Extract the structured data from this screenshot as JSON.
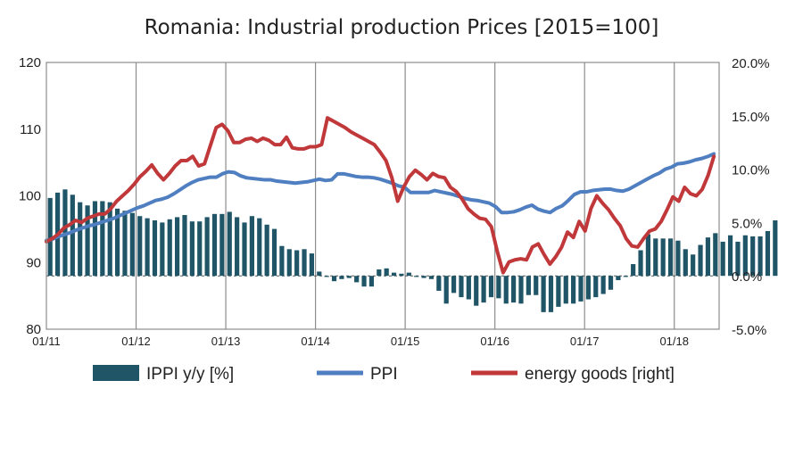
{
  "chart_data": {
    "type": "bar",
    "title": "Romania: Industrial production Prices [2015=100]",
    "left_axis": {
      "ylim": [
        80,
        120
      ],
      "ticks": [
        "80",
        "90",
        "100",
        "110",
        "120"
      ]
    },
    "right_axis": {
      "ylim": [
        -5.0,
        20.0
      ],
      "ticks": [
        "-5.0%",
        "0.0%",
        "5.0%",
        "10.0%",
        "15.0%",
        "20.0%"
      ]
    },
    "x_ticks": [
      "01/11",
      "01/12",
      "01/13",
      "01/14",
      "01/15",
      "01/16",
      "01/17",
      "01/18"
    ],
    "grid": "vertical",
    "legend": {
      "placement": "bottom",
      "items": [
        "IPPI y/y [%]",
        "PPI",
        "energy goods [right]"
      ]
    },
    "colors": {
      "bars": "#1f5566",
      "ppi": "#4f7fc0",
      "energy": "#c0383a"
    },
    "series": [
      {
        "name": "IPPI y/y [%]",
        "axis": "right",
        "type": "bar",
        "values": [
          7.3,
          7.8,
          8.1,
          7.6,
          6.9,
          6.6,
          7.0,
          7.0,
          6.9,
          6.3,
          6.1,
          5.9,
          5.6,
          5.4,
          5.2,
          5.0,
          5.3,
          5.5,
          5.7,
          5.1,
          5.1,
          5.5,
          5.8,
          5.8,
          6.0,
          5.5,
          5.0,
          5.6,
          5.4,
          4.8,
          4.4,
          2.8,
          2.5,
          2.4,
          2.5,
          2.1,
          0.4,
          -0.1,
          -0.5,
          -0.3,
          -0.2,
          -0.6,
          -1.0,
          -1.0,
          0.6,
          0.7,
          0.3,
          0.2,
          0.3,
          -0.1,
          -0.2,
          -0.3,
          -1.4,
          -2.6,
          -1.6,
          -2.0,
          -2.2,
          -2.8,
          -2.5,
          -2.0,
          -2.1,
          -2.6,
          -2.5,
          -2.6,
          -1.8,
          -1.8,
          -3.4,
          -3.4,
          -2.9,
          -2.6,
          -2.6,
          -2.4,
          -2.2,
          -2.0,
          -1.7,
          -1.3,
          -0.4,
          -0.1,
          1.1,
          2.4,
          3.9,
          3.5,
          3.5,
          3.5,
          3.3,
          2.5,
          2.0,
          2.9,
          3.6,
          4.0,
          3.2,
          3.8,
          3.2,
          3.8,
          3.7,
          3.7,
          4.2,
          5.2
        ]
      },
      {
        "name": "PPI",
        "axis": "left",
        "type": "line",
        "values": [
          93.3,
          93.5,
          93.9,
          94.2,
          94.5,
          94.9,
          95.2,
          95.5,
          95.7,
          96.0,
          96.3,
          96.6,
          97.0,
          97.4,
          97.8,
          98.2,
          98.5,
          98.9,
          99.3,
          99.5,
          99.8,
          100.3,
          100.9,
          101.5,
          102.0,
          102.4,
          102.6,
          102.8,
          102.8,
          103.3,
          103.6,
          103.5,
          103.0,
          102.7,
          102.6,
          102.5,
          102.4,
          102.4,
          102.2,
          102.1,
          102.0,
          101.9,
          102.0,
          102.1,
          102.3,
          102.5,
          102.3,
          102.4,
          103.3,
          103.3,
          103.1,
          102.9,
          102.8,
          102.8,
          102.7,
          102.5,
          102.2,
          101.9,
          101.5,
          101.3,
          100.5,
          100.5,
          100.5,
          100.5,
          100.8,
          100.6,
          100.4,
          100.2,
          99.9,
          99.6,
          99.4,
          99.3,
          99.1,
          98.9,
          98.4,
          97.5,
          97.5,
          97.6,
          97.9,
          98.3,
          98.6,
          98.0,
          97.7,
          97.5,
          98.1,
          98.5,
          99.3,
          100.2,
          100.6,
          100.6,
          100.8,
          100.9,
          101.0,
          101.0,
          100.8,
          100.7,
          101.0,
          101.5,
          102.0,
          102.5,
          103.0,
          103.4,
          104.0,
          104.3,
          104.8,
          104.9,
          105.1,
          105.4,
          105.6,
          105.9,
          106.3
        ]
      },
      {
        "name": "energy goods [right]",
        "axis": "right",
        "type": "line",
        "values": [
          3.2,
          3.5,
          3.9,
          4.5,
          4.8,
          5.2,
          5.0,
          5.4,
          5.6,
          5.8,
          5.8,
          6.3,
          7.0,
          7.5,
          8.0,
          8.6,
          9.3,
          9.8,
          10.4,
          9.6,
          9.0,
          9.6,
          10.3,
          10.8,
          10.8,
          11.2,
          10.3,
          10.5,
          12.2,
          13.9,
          14.2,
          13.6,
          12.5,
          12.5,
          12.8,
          12.9,
          12.6,
          12.9,
          12.7,
          12.3,
          12.3,
          13.0,
          12.0,
          11.9,
          11.9,
          12.1,
          12.1,
          12.3,
          14.8,
          14.5,
          14.2,
          13.9,
          13.5,
          13.2,
          12.9,
          12.6,
          12.3,
          11.6,
          10.8,
          9.2,
          7.0,
          8.3,
          9.3,
          9.9,
          9.5,
          9.0,
          9.6,
          9.3,
          9.2,
          8.3,
          7.9,
          7.2,
          6.3,
          5.8,
          5.4,
          5.3,
          4.6,
          2.3,
          0.3,
          1.3,
          1.5,
          1.6,
          1.5,
          2.7,
          3.0,
          2.0,
          1.1,
          1.8,
          2.7,
          4.1,
          3.6,
          5.1,
          4.2,
          6.3,
          7.5,
          6.8,
          6.2,
          5.4,
          4.7,
          3.5,
          2.8,
          2.7,
          3.5,
          4.2,
          4.4,
          5.1,
          6.2,
          7.4,
          7.0,
          8.3,
          7.7,
          7.5,
          8.1,
          9.4,
          11.2
        ]
      }
    ]
  }
}
